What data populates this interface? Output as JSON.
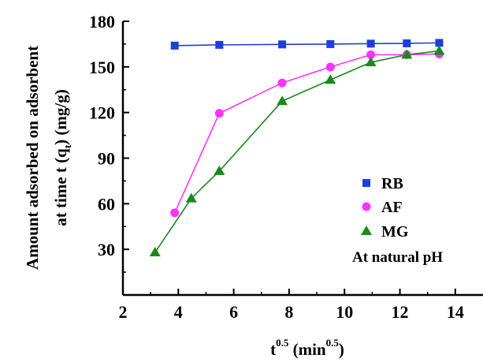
{
  "chart_data": {
    "type": "line",
    "xlabel_base": "t",
    "xlabel_sup": "0.5",
    "xlabel_unit_open": "(min",
    "xlabel_unit_sup": "0.5",
    "xlabel_unit_close": ")",
    "ylabel_line1": "Amount adsorbed on adsorbent",
    "ylabel_line2_pre": "at time t (q",
    "ylabel_line2_sub": "t",
    "ylabel_line2_post": ") (mg/g)",
    "xlim": [
      2,
      15
    ],
    "ylim": [
      0,
      180
    ],
    "x_ticks": [
      2,
      4,
      6,
      8,
      10,
      12,
      14
    ],
    "y_ticks": [
      30,
      60,
      90,
      120,
      150,
      180
    ],
    "annotation": "At natural pH",
    "legend_position": "right",
    "series": [
      {
        "name": "RB",
        "marker": "square",
        "color": "#1f3fd6",
        "x": [
          3.87,
          5.48,
          7.75,
          9.49,
          10.95,
          12.25,
          13.42
        ],
        "y": [
          164,
          164.5,
          164.8,
          165,
          165.3,
          165.5,
          165.8
        ]
      },
      {
        "name": "AF",
        "marker": "circle",
        "color": "#ff33ff",
        "x": [
          3.87,
          5.48,
          7.75,
          9.49,
          10.95,
          12.25,
          13.42
        ],
        "y": [
          54,
          119.5,
          139.5,
          150,
          158,
          158,
          158.5
        ]
      },
      {
        "name": "MG",
        "marker": "triangle",
        "color": "#1a8a1a",
        "x": [
          3.16,
          4.47,
          5.48,
          7.75,
          9.49,
          10.95,
          12.25,
          13.42
        ],
        "y": [
          28,
          63.5,
          81.5,
          127.5,
          141.5,
          153,
          158,
          160.5
        ]
      }
    ]
  }
}
